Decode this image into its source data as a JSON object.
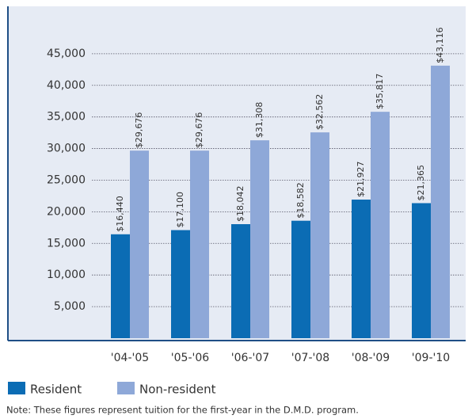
{
  "chart_data": {
    "type": "bar",
    "categories": [
      "'04-'05",
      "'05-'06",
      "'06-'07",
      "'07-'08",
      "'08-'09",
      "'09-'10"
    ],
    "series": [
      {
        "name": "Resident",
        "color": "#0b6cb4",
        "values": [
          16440,
          17100,
          18042,
          18582,
          21927,
          21365
        ],
        "value_labels": [
          "$16,440",
          "$17,100",
          "$18,042",
          "$18,582",
          "$21,927",
          "$21,365"
        ]
      },
      {
        "name": "Non-resident",
        "color": "#8ea8d8",
        "values": [
          29676,
          29676,
          31308,
          32562,
          35817,
          43116
        ],
        "value_labels": [
          "$29,676",
          "$29,676",
          "$31,308",
          "$32,562",
          "$35,817",
          "$43,116"
        ]
      }
    ],
    "ylim": [
      0,
      52500
    ],
    "yticks": [
      {
        "value": 5000,
        "label": "5,000"
      },
      {
        "value": 10000,
        "label": "10,000"
      },
      {
        "value": 15000,
        "label": "15,000"
      },
      {
        "value": 20000,
        "label": "20,000"
      },
      {
        "value": 25000,
        "label": "25,000"
      },
      {
        "value": 30000,
        "label": "30,000"
      },
      {
        "value": 35000,
        "label": "35,000"
      },
      {
        "value": 40000,
        "label": "40,000"
      },
      {
        "value": 45000,
        "label": "45,000"
      }
    ],
    "grid": true,
    "note": "Note: These figures represent tuition for the first-year in the D.M.D. program."
  }
}
